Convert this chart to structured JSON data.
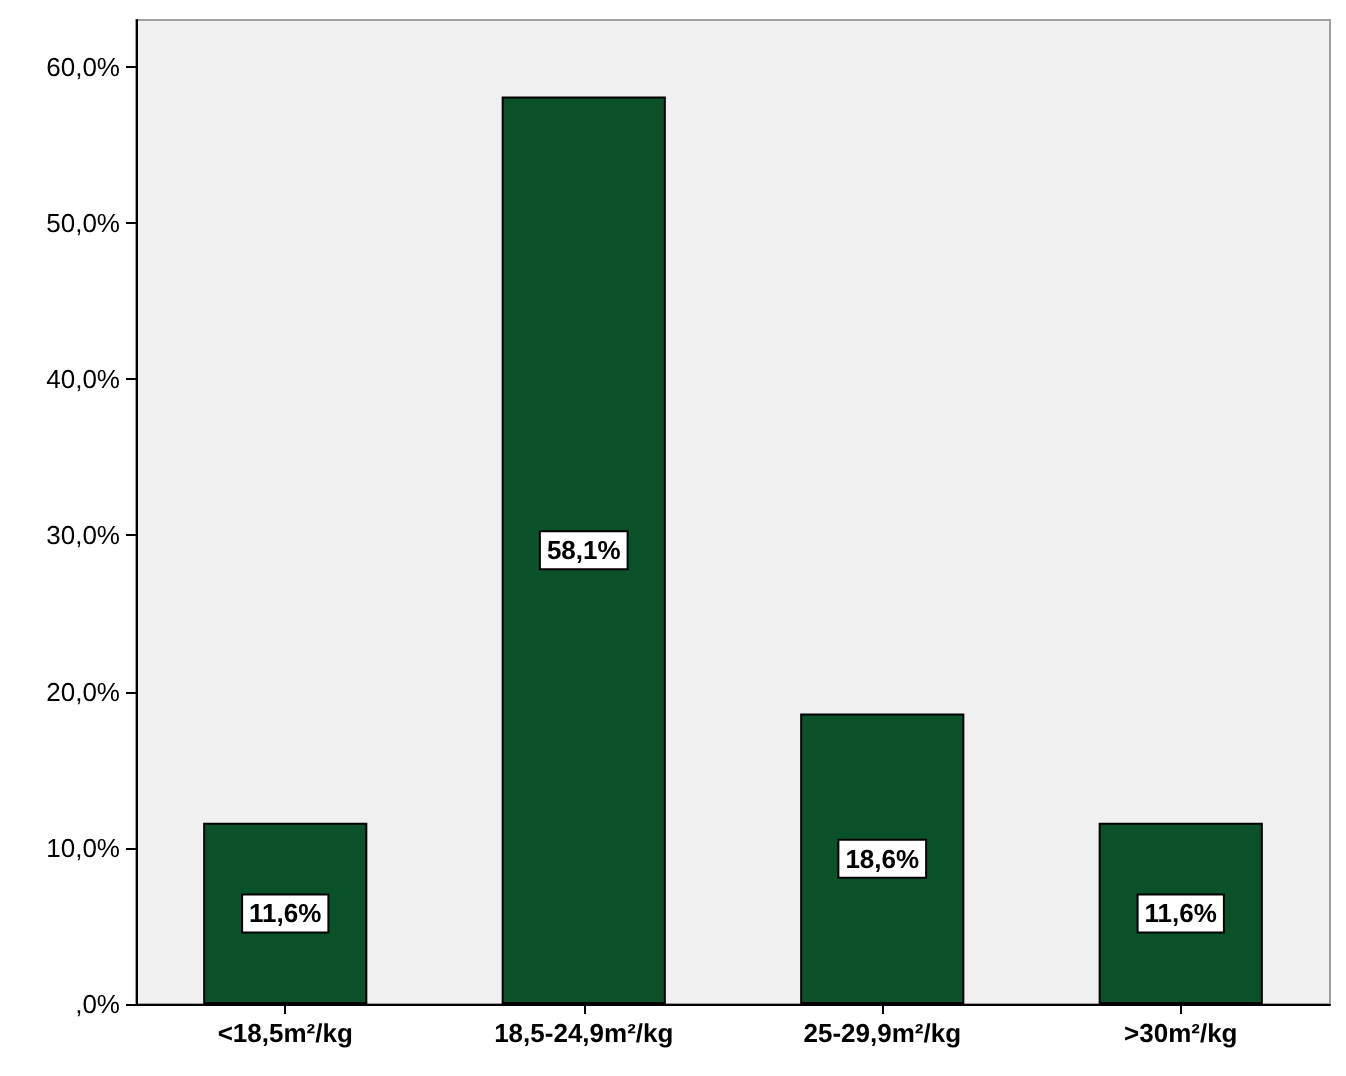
{
  "chart_data": {
    "type": "bar",
    "categories": [
      "<18,5m²/kg",
      "18,5-24,9m²/kg",
      "25-29,9m²/kg",
      ">30m²/kg"
    ],
    "values": [
      11.6,
      58.1,
      18.6,
      11.6
    ],
    "value_labels": [
      "11,6%",
      "58,1%",
      "18,6%",
      "11,6%"
    ],
    "color": "#0b5129",
    "ylim": [
      0,
      63
    ],
    "yticks": [
      {
        "value": 0,
        "label": ",0%"
      },
      {
        "value": 10,
        "label": "10,0%"
      },
      {
        "value": 20,
        "label": "20,0%"
      },
      {
        "value": 30,
        "label": "30,0%"
      },
      {
        "value": 40,
        "label": "40,0%"
      },
      {
        "value": 50,
        "label": "50,0%"
      },
      {
        "value": 60,
        "label": "60,0%"
      }
    ],
    "grid": false
  }
}
